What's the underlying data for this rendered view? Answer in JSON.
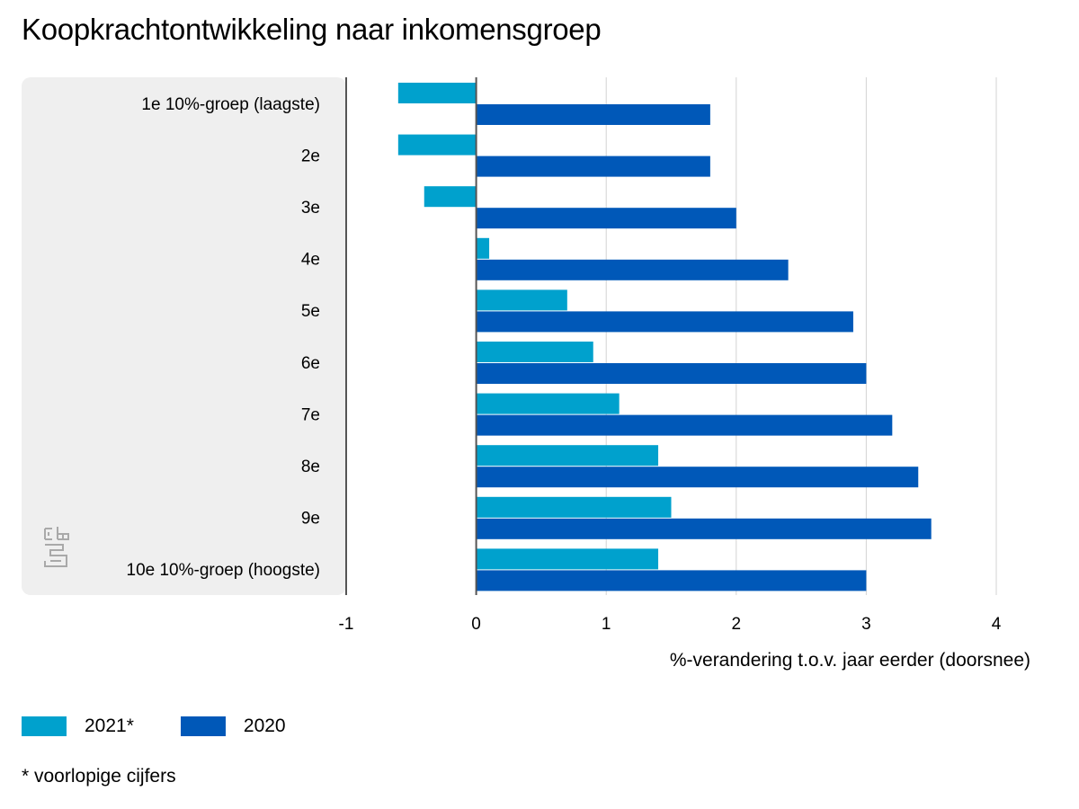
{
  "title": "Koopkrachtontwikkeling naar inkomensgroep",
  "footnote": "* voorlopige cijfers",
  "colors": {
    "series_2021": "#00a1cd",
    "series_2020": "#0058b8",
    "panel": "#efefef",
    "grid": "#d3d3d3",
    "axis": "#555555",
    "logo": "#a9a9a9"
  },
  "logo": {
    "icon": "cbs-logo-icon"
  },
  "chart_data": {
    "type": "bar",
    "orientation": "horizontal",
    "title": "Koopkrachtontwikkeling naar inkomensgroep",
    "xlabel": "%-verandering t.o.v. jaar eerder (doorsnee)",
    "ylabel": "",
    "xlim": [
      -1,
      4
    ],
    "xticks": [
      "-1",
      "0",
      "1",
      "2",
      "3",
      "4"
    ],
    "grid": true,
    "legend_position": "bottom-left",
    "categories": [
      "1e 10%-groep (laagste)",
      "2e",
      "3e",
      "4e",
      "5e",
      "6e",
      "7e",
      "8e",
      "9e",
      "10e 10%-groep (hoogste)"
    ],
    "series": [
      {
        "name": "2021*",
        "color": "#00a1cd",
        "values": [
          -0.6,
          -0.6,
          -0.4,
          0.1,
          0.7,
          0.9,
          1.1,
          1.4,
          1.5,
          1.4
        ]
      },
      {
        "name": "2020",
        "color": "#0058b8",
        "values": [
          1.8,
          1.8,
          2.0,
          2.4,
          2.9,
          3.0,
          3.2,
          3.4,
          3.5,
          3.0
        ]
      }
    ]
  }
}
